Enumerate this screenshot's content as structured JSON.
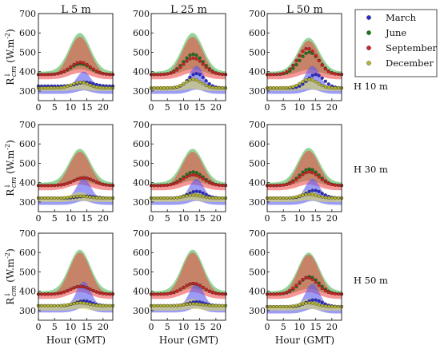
{
  "figure": {
    "column_titles": [
      "L 5 m",
      "L 25 m",
      "L 50 m"
    ],
    "row_labels": [
      "H 10 m",
      "H 30 m",
      "H 50 m"
    ],
    "xlabel": "Hour (GMT)",
    "ylabel": "R_cm (W.m-2)",
    "ylabel_parts": {
      "symbol": "R",
      "superscript": "↓",
      "subscript": "cm",
      "units_open": "(W.m",
      "units_exp": "-2",
      "units_close": ")"
    },
    "x_ticks": [
      0,
      5,
      10,
      15,
      20
    ],
    "y_ticks": [
      300,
      400,
      500,
      600,
      700
    ],
    "legend": [
      "March",
      "June",
      "September",
      "December"
    ]
  },
  "chart_data": {
    "type": "scatter",
    "layout": "3x3 grid of panels; columns = distance L, rows = height H",
    "xlim": [
      0,
      23
    ],
    "ylim": [
      250,
      700
    ],
    "grid": false,
    "legend_position": "outside right of top row",
    "series_colors": {
      "March": "#2a2ad6",
      "June": "#1a7a1a",
      "September": "#d42020",
      "December": "#b8b830"
    },
    "band_colors": {
      "March": "#5a5af0",
      "June": "#3cb043",
      "September": "#f04040",
      "December": "#d8d860"
    },
    "panels": [
      {
        "row": 0,
        "col": 0,
        "label": "L 5 m, H 10 m",
        "series": [
          {
            "name": "March",
            "base": 325,
            "peak": 345,
            "peak_hour": 14.5
          },
          {
            "name": "June",
            "base": 385,
            "peak": 440,
            "peak_hour": 13
          },
          {
            "name": "September",
            "base": 385,
            "peak": 448,
            "peak_hour": 13
          },
          {
            "name": "December",
            "base": 315,
            "peak": 345,
            "peak_hour": 13
          }
        ],
        "bands": [
          {
            "name": "June",
            "low": 380,
            "high": 600
          },
          {
            "name": "September",
            "low": 360,
            "high": 580
          },
          {
            "name": "March",
            "low": 285,
            "high": 400
          },
          {
            "name": "December",
            "low": 300,
            "high": 350
          }
        ]
      },
      {
        "row": 0,
        "col": 1,
        "label": "L 25 m, H 10 m",
        "series": [
          {
            "name": "March",
            "base": 315,
            "peak": 390,
            "peak_hour": 14
          },
          {
            "name": "June",
            "base": 385,
            "peak": 490,
            "peak_hour": 13
          },
          {
            "name": "September",
            "base": 385,
            "peak": 470,
            "peak_hour": 13
          },
          {
            "name": "December",
            "base": 315,
            "peak": 360,
            "peak_hour": 13
          }
        ],
        "bands": [
          {
            "name": "June",
            "low": 380,
            "high": 600
          },
          {
            "name": "September",
            "low": 360,
            "high": 580
          },
          {
            "name": "March",
            "low": 285,
            "high": 430
          },
          {
            "name": "December",
            "low": 300,
            "high": 370
          }
        ]
      },
      {
        "row": 0,
        "col": 2,
        "label": "L 50 m, H 10 m",
        "series": [
          {
            "name": "March",
            "base": 315,
            "peak": 385,
            "peak_hour": 15
          },
          {
            "name": "June",
            "base": 385,
            "peak": 500,
            "peak_hour": 13
          },
          {
            "name": "September",
            "base": 385,
            "peak": 520,
            "peak_hour": 12.5
          },
          {
            "name": "December",
            "base": 315,
            "peak": 360,
            "peak_hour": 13
          }
        ],
        "bands": [
          {
            "name": "June",
            "low": 380,
            "high": 575
          },
          {
            "name": "September",
            "low": 360,
            "high": 560
          },
          {
            "name": "March",
            "low": 285,
            "high": 430
          },
          {
            "name": "December",
            "low": 300,
            "high": 370
          }
        ]
      },
      {
        "row": 1,
        "col": 0,
        "label": "L 5 m, H 30 m",
        "series": [
          {
            "name": "March",
            "base": 320,
            "peak": 330,
            "peak_hour": 15
          },
          {
            "name": "June",
            "base": 385,
            "peak": 425,
            "peak_hour": 14
          },
          {
            "name": "September",
            "base": 385,
            "peak": 425,
            "peak_hour": 14
          },
          {
            "name": "December",
            "base": 320,
            "peak": 330,
            "peak_hour": 13
          }
        ],
        "bands": [
          {
            "name": "June",
            "low": 380,
            "high": 575
          },
          {
            "name": "September",
            "low": 360,
            "high": 560
          },
          {
            "name": "March",
            "low": 285,
            "high": 420
          },
          {
            "name": "December",
            "low": 300,
            "high": 350
          }
        ]
      },
      {
        "row": 1,
        "col": 1,
        "label": "L 25 m, H 30 m",
        "series": [
          {
            "name": "March",
            "base": 320,
            "peak": 355,
            "peak_hour": 14
          },
          {
            "name": "June",
            "base": 385,
            "peak": 455,
            "peak_hour": 13
          },
          {
            "name": "September",
            "base": 385,
            "peak": 440,
            "peak_hour": 13
          },
          {
            "name": "December",
            "base": 320,
            "peak": 335,
            "peak_hour": 13
          }
        ],
        "bands": [
          {
            "name": "June",
            "low": 380,
            "high": 575
          },
          {
            "name": "September",
            "low": 360,
            "high": 560
          },
          {
            "name": "March",
            "low": 285,
            "high": 420
          },
          {
            "name": "December",
            "low": 300,
            "high": 360
          }
        ]
      },
      {
        "row": 1,
        "col": 2,
        "label": "L 50 m, H 30 m",
        "series": [
          {
            "name": "March",
            "base": 320,
            "peak": 360,
            "peak_hour": 14.5
          },
          {
            "name": "June",
            "base": 385,
            "peak": 470,
            "peak_hour": 13
          },
          {
            "name": "September",
            "base": 385,
            "peak": 455,
            "peak_hour": 13
          },
          {
            "name": "December",
            "base": 320,
            "peak": 340,
            "peak_hour": 13
          }
        ],
        "bands": [
          {
            "name": "June",
            "low": 380,
            "high": 580
          },
          {
            "name": "September",
            "low": 360,
            "high": 565
          },
          {
            "name": "March",
            "low": 285,
            "high": 420
          },
          {
            "name": "December",
            "low": 300,
            "high": 360
          }
        ]
      },
      {
        "row": 2,
        "col": 0,
        "label": "L 5 m, H 50 m",
        "series": [
          {
            "name": "March",
            "base": 325,
            "peak": 350,
            "peak_hour": 14
          },
          {
            "name": "June",
            "base": 385,
            "peak": 425,
            "peak_hour": 13
          },
          {
            "name": "September",
            "base": 385,
            "peak": 425,
            "peak_hour": 13
          },
          {
            "name": "December",
            "base": 325,
            "peak": 340,
            "peak_hour": 13
          }
        ],
        "bands": [
          {
            "name": "June",
            "low": 380,
            "high": 615
          },
          {
            "name": "September",
            "low": 360,
            "high": 600
          },
          {
            "name": "March",
            "low": 290,
            "high": 450
          },
          {
            "name": "December",
            "low": 300,
            "high": 360
          }
        ]
      },
      {
        "row": 2,
        "col": 1,
        "label": "L 25 m, H 50 m",
        "series": [
          {
            "name": "March",
            "base": 325,
            "peak": 345,
            "peak_hour": 14
          },
          {
            "name": "June",
            "base": 385,
            "peak": 440,
            "peak_hour": 13
          },
          {
            "name": "September",
            "base": 385,
            "peak": 440,
            "peak_hour": 13
          },
          {
            "name": "December",
            "base": 325,
            "peak": 335,
            "peak_hour": 13
          }
        ],
        "bands": [
          {
            "name": "June",
            "low": 380,
            "high": 615
          },
          {
            "name": "September",
            "low": 360,
            "high": 600
          },
          {
            "name": "March",
            "low": 290,
            "high": 440
          },
          {
            "name": "December",
            "low": 300,
            "high": 360
          }
        ]
      },
      {
        "row": 2,
        "col": 2,
        "label": "L 50 m, H 50 m",
        "series": [
          {
            "name": "March",
            "base": 320,
            "peak": 355,
            "peak_hour": 14.5
          },
          {
            "name": "June",
            "base": 385,
            "peak": 475,
            "peak_hour": 13
          },
          {
            "name": "September",
            "base": 385,
            "peak": 470,
            "peak_hour": 12.5
          },
          {
            "name": "December",
            "base": 320,
            "peak": 340,
            "peak_hour": 13
          }
        ],
        "bands": [
          {
            "name": "June",
            "low": 380,
            "high": 600
          },
          {
            "name": "September",
            "low": 360,
            "high": 590
          },
          {
            "name": "March",
            "low": 285,
            "high": 440
          },
          {
            "name": "December",
            "low": 300,
            "high": 360
          }
        ]
      }
    ]
  }
}
